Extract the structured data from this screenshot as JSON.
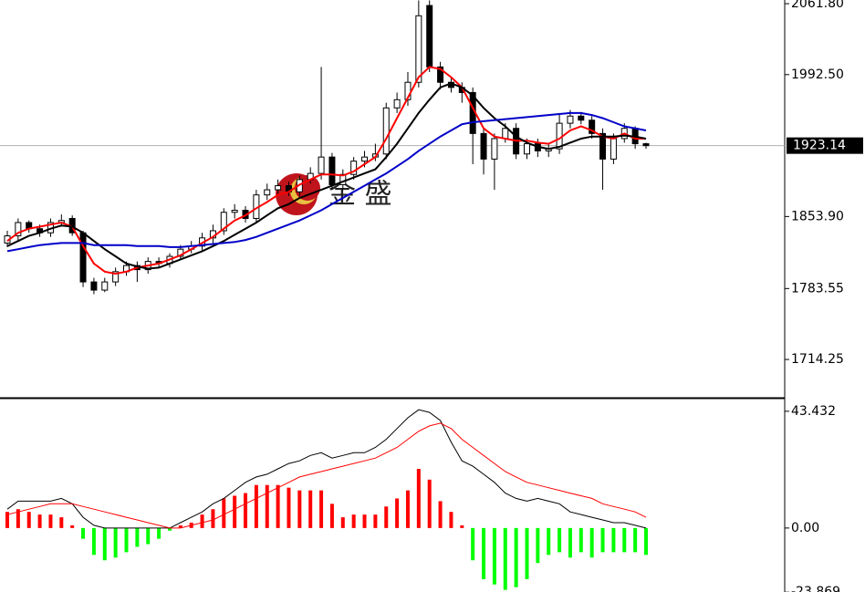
{
  "chart_data": [
    {
      "type": "candlestick",
      "watermark": "金 盛",
      "ylim": [
        1676.9,
        2065.4
      ],
      "yticks": [
        {
          "value": 2061.8,
          "label": "2061.80"
        },
        {
          "value": 1992.5,
          "label": "1992.50"
        },
        {
          "value": 1853.9,
          "label": "1853.90"
        },
        1783.55,
        1714.25
      ],
      "last_price": 1923.14,
      "up_color": "#ffffff",
      "down_color": "#000000",
      "open": [
        1828,
        1835,
        1848,
        1842,
        1838,
        1848,
        1852,
        1838,
        1790,
        1782,
        1790,
        1800,
        1806,
        1802,
        1810,
        1808,
        1815,
        1822,
        1825,
        1833,
        1840,
        1858,
        1860,
        1852,
        1875,
        1880,
        1884,
        1878,
        1890,
        1896,
        1912,
        1885,
        1895,
        1908,
        1912,
        1915,
        1960,
        1968,
        1985,
        2060,
        2000,
        1985,
        1980,
        1975,
        1935,
        1910,
        1930,
        1940,
        1915,
        1925,
        1918,
        1920,
        1945,
        1952,
        1948,
        1935,
        1910,
        1930,
        1940,
        1925
      ],
      "high": [
        1840,
        1852,
        1850,
        1846,
        1852,
        1856,
        1855,
        1840,
        1794,
        1794,
        1804,
        1810,
        1810,
        1814,
        1814,
        1818,
        1826,
        1830,
        1838,
        1846,
        1862,
        1866,
        1864,
        1880,
        1886,
        1890,
        1888,
        1894,
        1902,
        2000,
        1916,
        1900,
        1912,
        1918,
        1925,
        1965,
        1975,
        1995,
        2065,
        2065,
        2005,
        1990,
        1985,
        1980,
        1940,
        1935,
        1945,
        1945,
        1930,
        1930,
        1925,
        1955,
        1958,
        1956,
        1952,
        1940,
        1935,
        1945,
        1942,
        1926
      ],
      "low": [
        1824,
        1830,
        1838,
        1834,
        1834,
        1844,
        1835,
        1785,
        1778,
        1780,
        1786,
        1796,
        1790,
        1798,
        1804,
        1804,
        1812,
        1818,
        1820,
        1828,
        1836,
        1852,
        1848,
        1848,
        1870,
        1876,
        1874,
        1874,
        1886,
        1890,
        1880,
        1880,
        1890,
        1902,
        1908,
        1910,
        1955,
        1962,
        1980,
        1995,
        1978,
        1975,
        1965,
        1905,
        1895,
        1880,
        1926,
        1910,
        1910,
        1912,
        1912,
        1915,
        1940,
        1944,
        1930,
        1880,
        1905,
        1926,
        1920,
        1920
      ],
      "close": [
        1835,
        1848,
        1842,
        1838,
        1848,
        1850,
        1838,
        1790,
        1782,
        1790,
        1800,
        1806,
        1802,
        1810,
        1808,
        1815,
        1822,
        1825,
        1833,
        1840,
        1858,
        1860,
        1852,
        1875,
        1880,
        1884,
        1878,
        1890,
        1896,
        1912,
        1885,
        1895,
        1908,
        1912,
        1915,
        1960,
        1968,
        1985,
        2050,
        2000,
        1985,
        1980,
        1975,
        1935,
        1910,
        1930,
        1940,
        1915,
        1925,
        1918,
        1920,
        1945,
        1952,
        1948,
        1935,
        1910,
        1930,
        1940,
        1925,
        1923.14
      ],
      "series": [
        {
          "color": "#ff0000",
          "values": [
            1830,
            1838,
            1842,
            1844,
            1846,
            1848,
            1844,
            1825,
            1808,
            1800,
            1798,
            1800,
            1804,
            1806,
            1808,
            1812,
            1816,
            1822,
            1828,
            1834,
            1842,
            1850,
            1855,
            1862,
            1868,
            1875,
            1878,
            1885,
            1890,
            1895,
            1895,
            1894,
            1898,
            1905,
            1912,
            1930,
            1950,
            1970,
            1990,
            2000,
            1998,
            1990,
            1980,
            1960,
            1940,
            1932,
            1930,
            1928,
            1928,
            1926,
            1925,
            1930,
            1938,
            1942,
            1938,
            1932,
            1930,
            1935,
            1930,
            1930
          ]
        },
        {
          "color": "#000000",
          "values": [
            1825,
            1830,
            1835,
            1838,
            1842,
            1845,
            1844,
            1838,
            1830,
            1822,
            1815,
            1808,
            1805,
            1803,
            1804,
            1808,
            1812,
            1816,
            1820,
            1825,
            1830,
            1836,
            1842,
            1848,
            1855,
            1862,
            1866,
            1872,
            1876,
            1880,
            1884,
            1888,
            1892,
            1896,
            1900,
            1912,
            1925,
            1940,
            1955,
            1968,
            1980,
            1984,
            1980,
            1972,
            1960,
            1950,
            1942,
            1932,
            1926,
            1922,
            1920,
            1922,
            1926,
            1930,
            1932,
            1932,
            1932,
            1933,
            1932,
            1930
          ]
        },
        {
          "color": "#0000c8",
          "values": [
            1820,
            1822,
            1824,
            1826,
            1827,
            1828,
            1828,
            1828,
            1826,
            1826,
            1826,
            1826,
            1825,
            1825,
            1825,
            1824,
            1824,
            1825,
            1826,
            1827,
            1828,
            1829,
            1831,
            1834,
            1838,
            1842,
            1846,
            1850,
            1855,
            1860,
            1866,
            1872,
            1878,
            1884,
            1890,
            1896,
            1903,
            1910,
            1918,
            1925,
            1932,
            1938,
            1944,
            1946,
            1947,
            1948,
            1949,
            1950,
            1951,
            1952,
            1953,
            1954,
            1955,
            1955,
            1953,
            1950,
            1946,
            1942,
            1940,
            1938
          ]
        }
      ]
    },
    {
      "type": "macd",
      "ylim": [
        -23.8,
        47.8
      ],
      "yticks": [
        43.432,
        {
          "value": 0,
          "label": "0.00"
        },
        -23.869
      ],
      "up_color": "#ff0000",
      "down_color": "#00ff00",
      "histogram": [
        6,
        7,
        6,
        5,
        5,
        4,
        1,
        -4,
        -10,
        -12,
        -11,
        -9,
        -7,
        -6,
        -4,
        -1,
        1,
        2,
        5,
        7,
        11,
        12,
        13,
        16,
        16,
        16,
        15,
        14,
        14,
        14,
        9,
        4,
        5,
        5,
        5,
        8,
        11,
        14,
        22,
        18,
        10,
        6,
        1,
        -12,
        -19,
        -21,
        -23,
        -22,
        -19,
        -13,
        -10,
        -9,
        -11,
        -9,
        -11,
        -9,
        -9,
        -9,
        -9,
        -10
      ],
      "series": [
        {
          "color": "#000000",
          "values": [
            7,
            10,
            10,
            10,
            10,
            11,
            9,
            4,
            1,
            0,
            0,
            0,
            0,
            0,
            0,
            0,
            2,
            4,
            6,
            9,
            11,
            14,
            17,
            19,
            20,
            22,
            24,
            25,
            27,
            28,
            26,
            27,
            28,
            28,
            30,
            33,
            37,
            41,
            44,
            43,
            40,
            32,
            25,
            23,
            20,
            17,
            13,
            11,
            10,
            11,
            10,
            9,
            6,
            5,
            4,
            3,
            2,
            2,
            1,
            0
          ]
        },
        {
          "color": "#ff0000",
          "values": [
            5,
            6,
            7,
            8,
            9,
            9,
            9,
            8,
            7,
            6,
            5,
            4,
            3,
            2,
            1,
            0,
            0,
            1,
            2,
            3,
            5,
            7,
            9,
            11,
            13,
            15,
            17,
            19,
            20,
            21,
            22,
            23,
            24,
            25,
            26,
            28,
            30,
            33,
            36,
            38,
            39,
            37,
            33,
            30,
            27,
            24,
            21,
            19,
            17,
            16,
            15,
            14,
            13,
            12,
            11,
            9,
            8,
            7,
            6,
            4
          ]
        }
      ]
    }
  ]
}
